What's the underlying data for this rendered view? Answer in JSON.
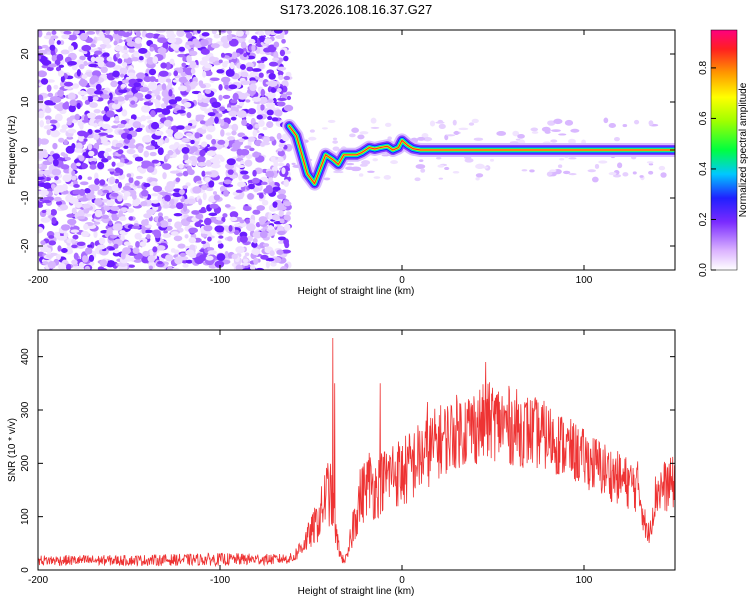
{
  "title": "S173.2026.108.16.37.G27",
  "chart_data": [
    {
      "type": "heatmap",
      "name": "spectrogram",
      "xlabel": "Height of straight line (km)",
      "ylabel": "Frequency (Hz)",
      "xlim": [
        -200,
        150
      ],
      "ylim": [
        -25,
        25
      ],
      "xticks": [
        -200,
        -100,
        0,
        100
      ],
      "yticks": [
        -20,
        -10,
        0,
        10,
        20
      ],
      "noise_region_x": [
        -200,
        -62
      ],
      "ridge_line": {
        "x": [
          -62,
          -58,
          -55,
          -52,
          -48,
          -45,
          -42,
          -38,
          -35,
          -32,
          -28,
          -25,
          -22,
          -18,
          -15,
          -12,
          -8,
          -5,
          -2,
          0,
          3,
          6,
          10,
          20,
          40,
          60,
          80,
          100,
          120,
          150
        ],
        "y": [
          5,
          3,
          -1,
          -5,
          -7,
          -4,
          -1,
          -2,
          -3,
          -1,
          -1,
          -1,
          -0.5,
          0.5,
          0.2,
          0.5,
          0.8,
          0,
          0.5,
          2,
          1,
          0.3,
          0,
          0,
          0,
          0,
          0,
          0,
          0,
          0
        ]
      },
      "colorbar": {
        "label": "Normalized spectral amplitude",
        "range": [
          0,
          0.95
        ],
        "ticks": [
          "0.0",
          "0.2",
          "0.4",
          "0.6",
          "0.8"
        ],
        "tick_values": [
          0,
          0.2,
          0.4,
          0.6,
          0.8
        ]
      }
    },
    {
      "type": "line",
      "name": "snr",
      "xlabel": "Height of straight line (km)",
      "ylabel": "SNR (10 * v/v)",
      "xlim": [
        -200,
        150
      ],
      "ylim": [
        0,
        450
      ],
      "xticks": [
        -200,
        -100,
        0,
        100
      ],
      "yticks": [
        0,
        100,
        200,
        300,
        400
      ],
      "color": "#ee3333",
      "envelope": {
        "x": [
          -200,
          -150,
          -100,
          -70,
          -60,
          -55,
          -50,
          -45,
          -42,
          -40,
          -38,
          -36,
          -33,
          -30,
          -25,
          -22,
          -18,
          -15,
          -10,
          -5,
          0,
          10,
          20,
          30,
          40,
          50,
          60,
          70,
          80,
          90,
          100,
          110,
          120,
          130,
          135,
          140,
          150
        ],
        "mean": [
          18,
          18,
          20,
          20,
          22,
          45,
          70,
          100,
          140,
          150,
          120,
          60,
          20,
          22,
          120,
          140,
          170,
          150,
          170,
          185,
          180,
          210,
          240,
          260,
          270,
          280,
          270,
          260,
          250,
          230,
          210,
          190,
          170,
          155,
          60,
          150,
          165
        ],
        "amplitude": [
          10,
          10,
          12,
          10,
          10,
          20,
          30,
          45,
          60,
          70,
          50,
          25,
          8,
          10,
          60,
          60,
          60,
          60,
          60,
          65,
          70,
          70,
          70,
          70,
          75,
          75,
          75,
          70,
          65,
          60,
          55,
          55,
          50,
          50,
          20,
          50,
          50
        ]
      },
      "spikes": [
        {
          "x": -38,
          "y": 435
        },
        {
          "x": -37,
          "y": 350
        },
        {
          "x": -12,
          "y": 350
        },
        {
          "x": 14,
          "y": 315
        },
        {
          "x": 46,
          "y": 390
        }
      ]
    }
  ]
}
